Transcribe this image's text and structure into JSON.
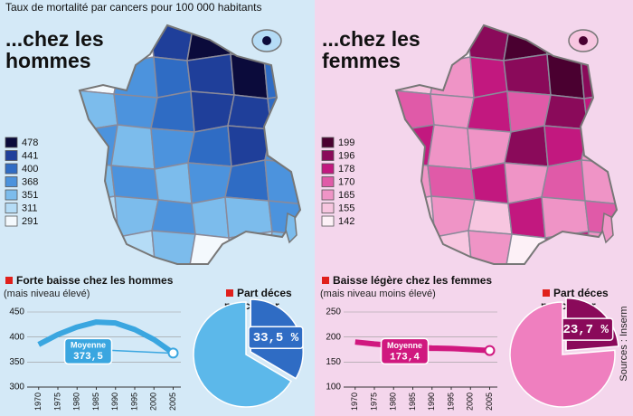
{
  "title": "Taux de mortalité par cancers pour 100 000 habitants",
  "panels": [
    {
      "heading": [
        "...chez les",
        "hommes"
      ],
      "scale": {
        "values": [
          478,
          441,
          400,
          368,
          351,
          311,
          291
        ],
        "colors": [
          "#0b0b3b",
          "#1f3f9a",
          "#2f6cc4",
          "#4c93dd",
          "#7cbcec",
          "#b5dcf6",
          "#f4f9fd"
        ]
      }
    },
    {
      "heading": [
        "...chez les",
        "femmes"
      ],
      "scale": {
        "values": [
          199,
          196,
          178,
          170,
          165,
          155,
          142
        ],
        "colors": [
          "#4a0030",
          "#8a0a5a",
          "#c2187f",
          "#e05aa8",
          "#ef94c6",
          "#f7c6e0",
          "#fdf1f7"
        ]
      }
    }
  ],
  "chart_data": [
    {
      "type": "line",
      "title": "Forte baisse chez les hommes",
      "subtitle": "(mais niveau élevé)",
      "x": [
        1970,
        1975,
        1980,
        1985,
        1990,
        1995,
        2000,
        2005
      ],
      "xlim": [
        1967,
        2007
      ],
      "xticks": [
        1970,
        1975,
        1980,
        1985,
        1990,
        1995,
        2000,
        2005
      ],
      "ylim": [
        300,
        450
      ],
      "yticks": [
        300,
        350,
        400,
        450
      ],
      "values": [
        385,
        405,
        420,
        430,
        428,
        415,
        395,
        368
      ],
      "color": "#3aa6e0",
      "annotation": {
        "text": "Moyenne",
        "value": 373.5,
        "label": "373,5"
      }
    },
    {
      "type": "pie",
      "title": [
        "Part déces",
        "par cancer"
      ],
      "values": [
        33.5,
        66.5
      ],
      "value_labels": [
        "33,5 %",
        null
      ],
      "colors": [
        "#2f6cc4",
        "#5cb8ea"
      ]
    },
    {
      "type": "line",
      "title": "Baisse légère chez les femmes",
      "subtitle": "(mais niveau moins élevé)",
      "x": [
        1970,
        1975,
        1980,
        1985,
        1990,
        1995,
        2000,
        2005
      ],
      "xlim": [
        1967,
        2007
      ],
      "xticks": [
        1970,
        1975,
        1980,
        1985,
        1990,
        1995,
        2000,
        2005
      ],
      "ylim": [
        100,
        250
      ],
      "yticks": [
        100,
        150,
        200,
        250
      ],
      "values": [
        190,
        186,
        183,
        180,
        178,
        177,
        175,
        173
      ],
      "color": "#d0187f",
      "annotation": {
        "text": "Moyenne",
        "value": 173.4,
        "label": "173,4"
      }
    },
    {
      "type": "pie",
      "title": [
        "Part déces",
        "par cancer"
      ],
      "values": [
        23.7,
        76.3
      ],
      "value_labels": [
        "23,7 %",
        null
      ],
      "colors": [
        "#8a0a5a",
        "#ef7fbf"
      ]
    }
  ],
  "source": "Sources : Inserm"
}
